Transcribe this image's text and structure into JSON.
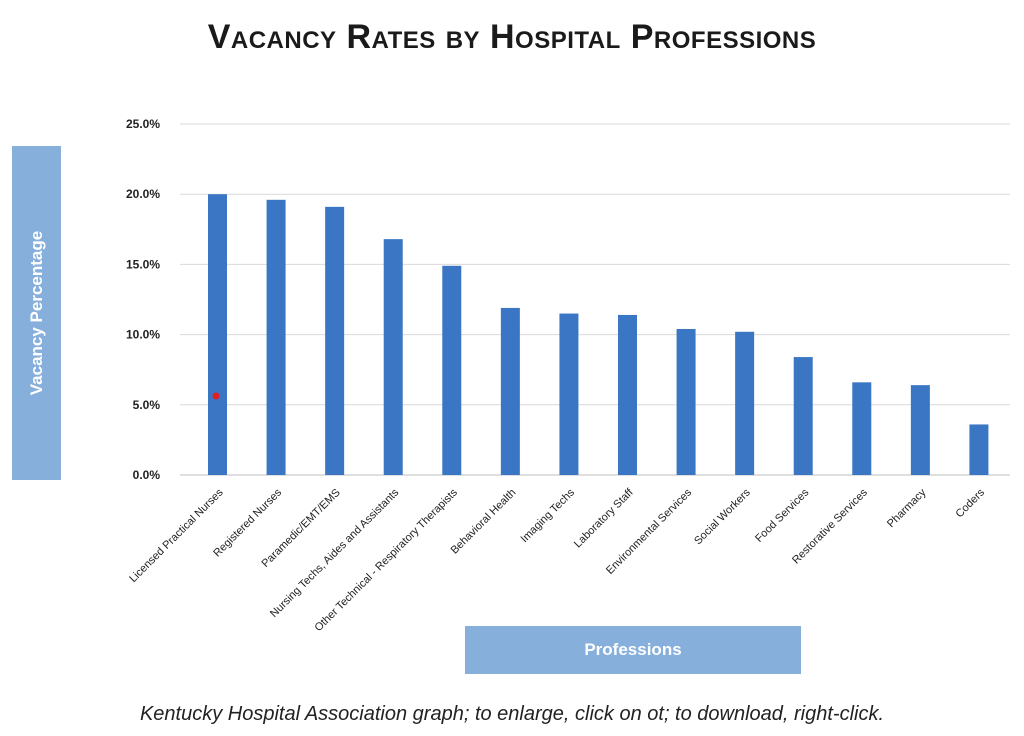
{
  "chart_data": {
    "type": "bar",
    "title": "Vacancy Rates by Hospital Professions",
    "xlabel": "Professions",
    "ylabel": "Vacancy Percentage",
    "ylim": [
      0,
      25
    ],
    "yticks": [
      0,
      5,
      10,
      15,
      20,
      25
    ],
    "ytick_labels": [
      "0.0%",
      "5.0%",
      "10.0%",
      "15.0%",
      "20.0%",
      "25.0%"
    ],
    "grid": true,
    "legend": "none",
    "bar_color": "#3a76c4",
    "categories": [
      "Licensed Practical Nurses",
      "Registered Nurses",
      "Paramedic/EMT/EMS",
      "Nursing Techs, Aides and Assistants",
      "Other Technical - Respiratory Therapists",
      "Behavioral Health",
      "Imaging Techs",
      "Laboratory Staff",
      "Environmental Services",
      "Social Workers",
      "Food Services",
      "Restorative Services",
      "Pharmacy",
      "Coders"
    ],
    "values": [
      20.0,
      19.6,
      19.1,
      16.8,
      14.9,
      11.9,
      11.5,
      11.4,
      10.4,
      10.2,
      8.4,
      6.6,
      6.4,
      3.6
    ]
  },
  "caption": "Kentucky Hospital Association graph; to enlarge, click on ot; to download, right-click.",
  "colors": {
    "label_box": "#86afdc",
    "bar": "#3a76c4",
    "grid": "#d9d9d9"
  }
}
